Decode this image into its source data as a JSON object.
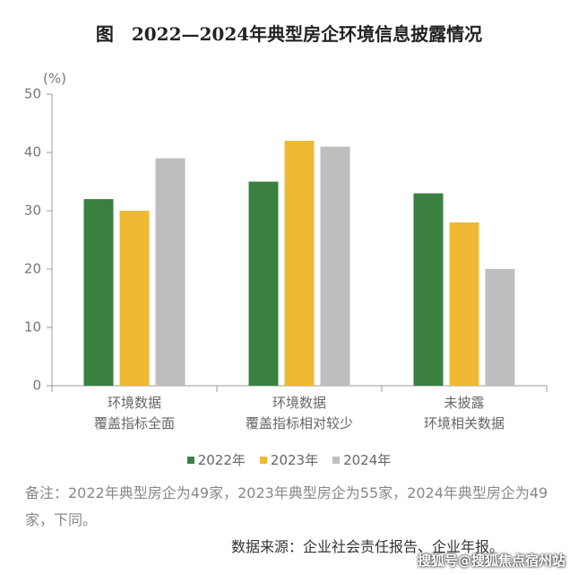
{
  "chart_data": {
    "type": "bar",
    "title": "图　2022—2024年典型房企环境信息披露情况",
    "y_unit": "(%)",
    "categories": [
      "环境数据\n覆盖指标全面",
      "环境数据\n覆盖指标相对较少",
      "未披露\n环境相关数据"
    ],
    "series": [
      {
        "name": "2022年",
        "color": "#3a8040",
        "values": [
          32,
          35,
          33
        ]
      },
      {
        "name": "2023年",
        "color": "#efb934",
        "values": [
          30,
          42,
          28
        ]
      },
      {
        "name": "2024年",
        "color": "#bebec0",
        "values": [
          39,
          41,
          20
        ]
      }
    ],
    "ylim": [
      0,
      50
    ],
    "yticks": [
      0,
      10,
      20,
      30,
      40,
      50
    ],
    "note": "备注：2022年典型房企为49家，2023年典型房企为55家，2024年典型房企为49家，下同。",
    "source": "数据来源：企业社会责任报告、企业年报。",
    "watermark": "搜狐号@搜狐焦点宿州站"
  }
}
